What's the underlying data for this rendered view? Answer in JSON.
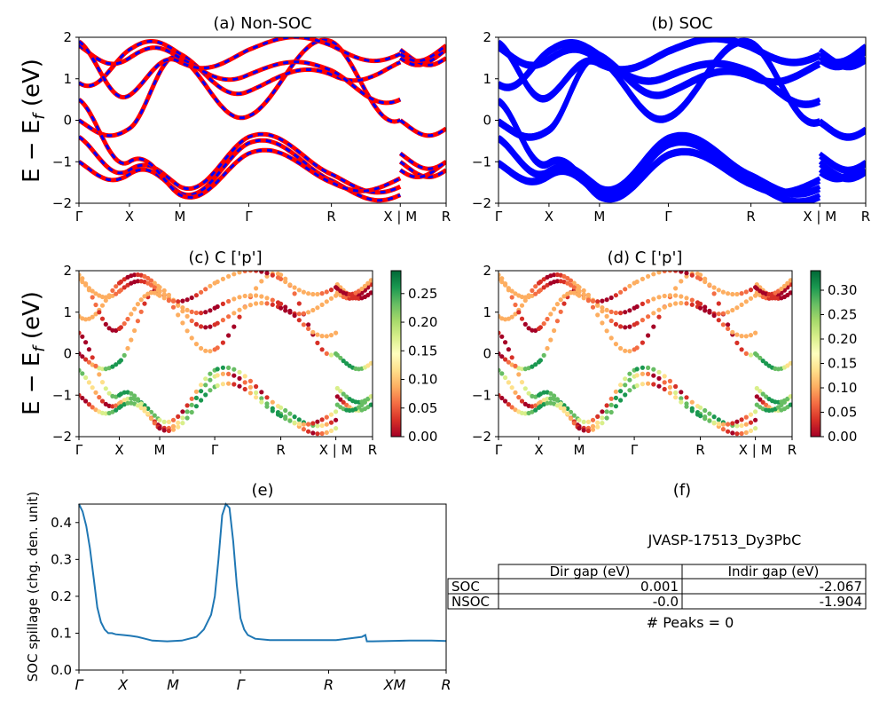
{
  "colors": {
    "nonsoc_up": "#ff0000",
    "nonsoc_dn": "#0000ff",
    "soc": "#0000ff",
    "spillage": "#1f77b4",
    "colormap": "RdYlGn"
  },
  "bands": {
    "ylabel": "E − E_f (eV)",
    "ylabel_main": "E − E",
    "ylabel_sub": "f",
    "ylabel_unit": " (eV)",
    "ylim": [
      -2,
      2
    ],
    "yticks": [
      "−2",
      "−1",
      "0",
      "1",
      "2"
    ],
    "kpath_labels": [
      "Γ",
      "X",
      "M",
      "Γ",
      "R",
      "X | M",
      "R"
    ]
  },
  "panels": {
    "a": {
      "title": "(a) Non-SOC"
    },
    "b": {
      "title": "(b) SOC"
    },
    "c": {
      "title": "(c)  C ['p']",
      "colorbar_ticks": [
        "0.00",
        "0.05",
        "0.10",
        "0.15",
        "0.20",
        "0.25"
      ],
      "colorbar_range": [
        0,
        0.29
      ]
    },
    "d": {
      "title": "(d) C ['p']",
      "colorbar_ticks": [
        "0.00",
        "0.05",
        "0.10",
        "0.15",
        "0.20",
        "0.25",
        "0.30"
      ],
      "colorbar_range": [
        0,
        0.34
      ]
    },
    "e": {
      "title": "(e)",
      "ylabel": "SOC spillage (chg. den. unit)"
    },
    "f": {
      "title": "(f)"
    }
  },
  "chart_data": [
    {
      "panel": "a",
      "type": "line",
      "title": "(a) Non-SOC",
      "ylabel": "E − E_f (eV)",
      "ylim": [
        -2,
        2
      ],
      "series": [
        {
          "kind": "band",
          "x": [
            0,
            0.6,
            1.2,
            1.9,
            2.9,
            3.6,
            3.6,
            4.0
          ],
          "values": [
            0.9,
            -0.2,
            1.0,
            0.2,
            1.9,
            0.0,
            0.0,
            1.1
          ]
        },
        {
          "kind": "band",
          "x": [
            0,
            0.6,
            1.2,
            1.9,
            2.9,
            3.6,
            3.6,
            4.0
          ],
          "values": [
            -0.4,
            -1.2,
            -1.6,
            -0.4,
            -1.4,
            -1.6,
            -1.0,
            -1.2
          ]
        },
        {
          "kind": "band",
          "x": [
            0,
            0.6,
            1.2,
            1.9,
            2.9,
            3.6,
            3.6,
            4.0
          ],
          "values": [
            -1.0,
            -1.3,
            -1.7,
            -0.6,
            -1.5,
            -1.8,
            -1.1,
            -1.4
          ]
        }
      ]
    },
    {
      "panel": "b",
      "type": "line",
      "title": "(b) SOC",
      "ylim": [
        -2,
        2
      ],
      "series": [
        {
          "kind": "band",
          "x": [
            0,
            0.6,
            1.2,
            1.9,
            2.9,
            3.6,
            3.6,
            4.0
          ],
          "values": [
            0.9,
            -0.2,
            1.0,
            0.2,
            1.9,
            0.0,
            0.0,
            1.1
          ]
        },
        {
          "kind": "band",
          "x": [
            0,
            0.6,
            1.2,
            1.9,
            2.9,
            3.6,
            3.6,
            4.0
          ],
          "values": [
            -0.4,
            -1.2,
            -1.6,
            -0.4,
            -1.4,
            -1.6,
            -1.0,
            -1.2
          ]
        }
      ]
    },
    {
      "panel": "c",
      "type": "scatter",
      "title": "(c)  C ['p']",
      "ylim": [
        -2,
        2
      ],
      "colorbar": [
        0,
        0.29
      ]
    },
    {
      "panel": "d",
      "type": "scatter",
      "title": "(d) C ['p']",
      "ylim": [
        -2,
        2
      ],
      "colorbar": [
        0,
        0.34
      ]
    },
    {
      "panel": "e",
      "type": "line",
      "title": "(e)",
      "ylabel": "SOC spillage (chg. den. unit)",
      "ylim": [
        0.0,
        0.45
      ],
      "yticks": [
        "0.0",
        "0.1",
        "0.2",
        "0.3",
        "0.4"
      ],
      "xticklabels": [
        "Γ",
        "X",
        "M",
        "Γ",
        "R",
        "XM",
        "R"
      ],
      "series": [
        {
          "x": [
            0.0,
            0.05,
            0.1,
            0.15,
            0.2,
            0.25,
            0.3,
            0.35,
            0.4,
            0.45,
            0.5,
            0.6,
            0.7,
            0.8,
            0.9,
            1.0,
            1.2,
            1.4,
            1.6,
            1.7,
            1.8,
            1.85,
            1.9,
            1.95,
            2.0,
            2.05,
            2.1,
            2.15,
            2.2,
            2.25,
            2.3,
            2.4,
            2.6,
            3.0,
            3.5,
            3.85,
            3.9,
            3.92,
            4.0,
            4.5,
            4.8,
            5.0
          ],
          "values": [
            0.45,
            0.43,
            0.39,
            0.33,
            0.25,
            0.17,
            0.13,
            0.11,
            0.1,
            0.1,
            0.097,
            0.095,
            0.093,
            0.09,
            0.085,
            0.08,
            0.078,
            0.08,
            0.09,
            0.11,
            0.15,
            0.2,
            0.3,
            0.42,
            0.45,
            0.44,
            0.35,
            0.23,
            0.14,
            0.11,
            0.095,
            0.085,
            0.081,
            0.081,
            0.081,
            0.09,
            0.095,
            0.078,
            0.078,
            0.08,
            0.08,
            0.079
          ]
        }
      ]
    },
    {
      "panel": "f",
      "type": "table",
      "title": "(f)",
      "caption": "JVASP-17513_Dy3PbC",
      "columns": [
        "Dir gap (eV)",
        "Indir gap (eV)"
      ],
      "rows": [
        {
          "label": "SOC",
          "cells": [
            "0.001",
            "-2.067"
          ]
        },
        {
          "label": "NSOC",
          "cells": [
            "-0.0",
            "-1.904"
          ]
        }
      ],
      "footer": "# Peaks = 0"
    }
  ]
}
